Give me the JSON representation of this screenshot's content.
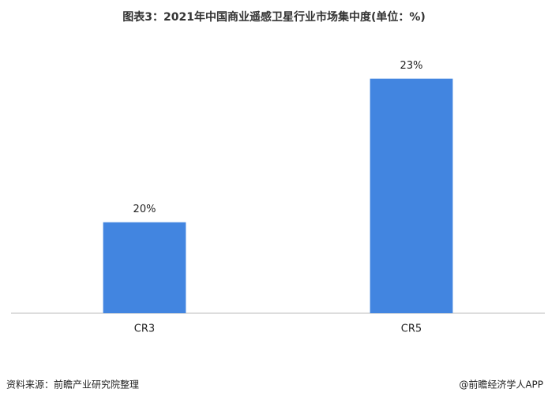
{
  "chart_data": {
    "type": "bar",
    "title": "图表3：2021年中国商业遥感卫星行业市场集中度(单位：%)",
    "categories": [
      "CR3",
      "CR5"
    ],
    "values": [
      20,
      23
    ],
    "value_labels": [
      "20%",
      "23%"
    ],
    "color": "#4285e0",
    "ylim": [
      18.1,
      24
    ],
    "source": "资料来源：前瞻产业研究院整理",
    "credit": "@前瞻经济学人APP"
  }
}
